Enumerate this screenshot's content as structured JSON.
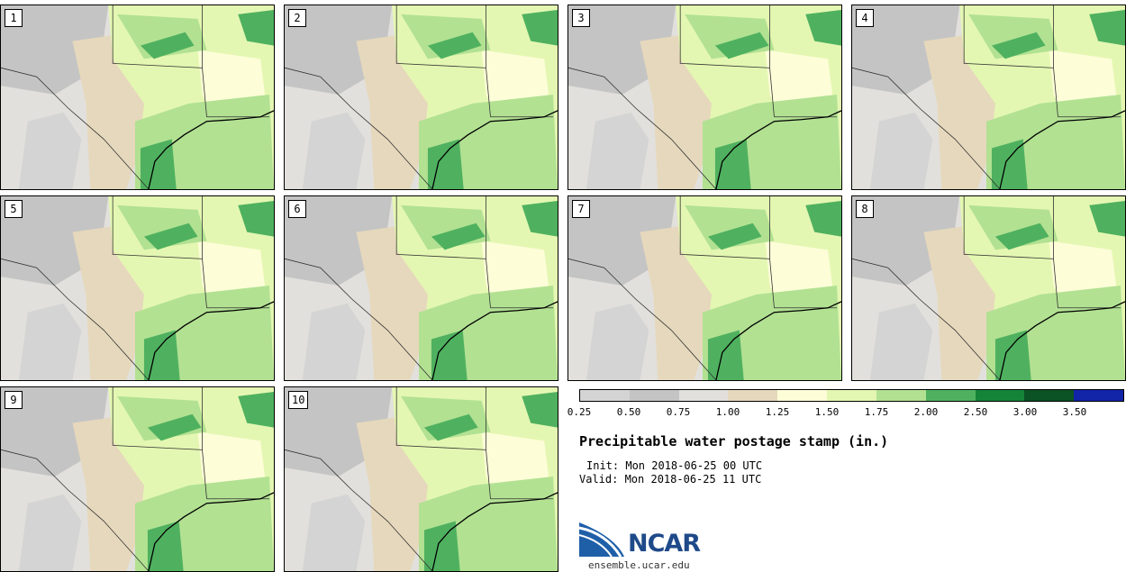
{
  "stamps": [
    {
      "label": "1"
    },
    {
      "label": "2"
    },
    {
      "label": "3"
    },
    {
      "label": "4"
    },
    {
      "label": "5"
    },
    {
      "label": "6"
    },
    {
      "label": "7"
    },
    {
      "label": "8"
    },
    {
      "label": "9"
    },
    {
      "label": "10"
    }
  ],
  "colorbar": {
    "colors": [
      "#d4d4d4",
      "#c4c4c4",
      "#e2e0dc",
      "#e6d8bc",
      "#fdfdd8",
      "#e4f7b2",
      "#b2e192",
      "#4fb15f",
      "#148538",
      "#0b5224",
      "#1224a8"
    ],
    "ticks": [
      "0.25",
      "0.50",
      "0.75",
      "1.00",
      "1.25",
      "1.50",
      "1.75",
      "2.00",
      "2.50",
      "3.00",
      "3.50"
    ]
  },
  "title": "Precipitable water postage stamp (in.)",
  "init": "Init: Mon 2018-06-25 00 UTC",
  "valid": "Valid: Mon 2018-06-25 11 UTC",
  "logo": {
    "text": "NCAR",
    "url": "ensemble.ucar.edu",
    "color": "#1f4a8a"
  }
}
